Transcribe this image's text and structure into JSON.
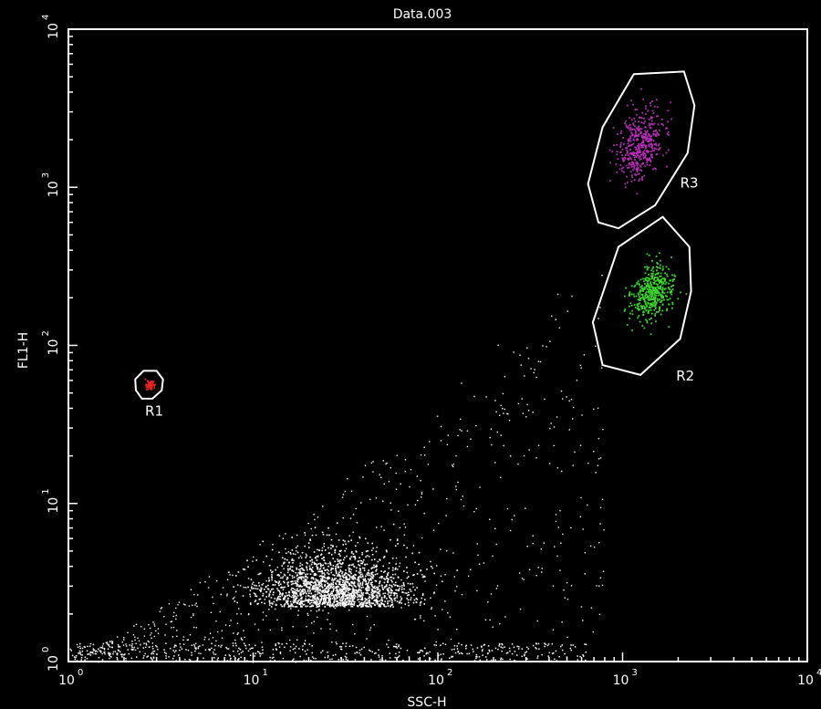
{
  "chart_data": {
    "type": "scatter",
    "title": "Data.003",
    "xlabel": "SSC-H",
    "ylabel": "FL1-H",
    "x_scale": "log",
    "y_scale": "log",
    "xlim": [
      1,
      10000
    ],
    "ylim": [
      1,
      10000
    ],
    "grid": false,
    "legend": "none",
    "x_ticks": [
      {
        "base": "10",
        "exp": "0",
        "value": 1
      },
      {
        "base": "10",
        "exp": "1",
        "value": 10
      },
      {
        "base": "10",
        "exp": "2",
        "value": 100
      },
      {
        "base": "10",
        "exp": "3",
        "value": 1000
      },
      {
        "base": "10",
        "exp": "4",
        "value": 10000
      }
    ],
    "y_ticks": [
      {
        "base": "10",
        "exp": "0",
        "value": 1
      },
      {
        "base": "10",
        "exp": "1",
        "value": 10
      },
      {
        "base": "10",
        "exp": "2",
        "value": 100
      },
      {
        "base": "10",
        "exp": "3",
        "value": 1000
      },
      {
        "base": "10",
        "exp": "4",
        "value": 10000
      }
    ],
    "colors": {
      "background": "#000000",
      "frame": "#ffffff",
      "events": "#ffffff",
      "R1": "#e8251e",
      "R2": "#3bd62c",
      "R3": "#b52fb6"
    },
    "regions": [
      {
        "name": "R1",
        "label": "R1",
        "color": "#e8251e",
        "polygon": [
          [
            2.55,
            69
          ],
          [
            3.0,
            69
          ],
          [
            3.25,
            61
          ],
          [
            3.2,
            52
          ],
          [
            2.85,
            46
          ],
          [
            2.5,
            46
          ],
          [
            2.32,
            52
          ],
          [
            2.3,
            61
          ]
        ],
        "label_at": [
          2.6,
          36
        ],
        "center": [
          2.75,
          57
        ],
        "spread": [
          1.06,
          1.07
        ]
      },
      {
        "name": "R2",
        "label": "R2",
        "color": "#3bd62c",
        "polygon": [
          [
            1650,
            650
          ],
          [
            2300,
            420
          ],
          [
            2350,
            220
          ],
          [
            2050,
            110
          ],
          [
            1250,
            65
          ],
          [
            780,
            75
          ],
          [
            690,
            140
          ],
          [
            950,
            420
          ]
        ],
        "label_at": [
          1950,
          60
        ],
        "center": [
          1450,
          220
        ],
        "spread": [
          1.28,
          1.45
        ]
      },
      {
        "name": "R3",
        "label": "R3",
        "color": "#b52fb6",
        "polygon": [
          [
            1150,
            5200
          ],
          [
            2150,
            5400
          ],
          [
            2450,
            3300
          ],
          [
            2250,
            1650
          ],
          [
            1500,
            770
          ],
          [
            950,
            550
          ],
          [
            740,
            600
          ],
          [
            650,
            1050
          ],
          [
            780,
            2400
          ]
        ],
        "label_at": [
          2050,
          1000
        ],
        "center": [
          1250,
          1900
        ],
        "spread": [
          1.32,
          1.6
        ]
      }
    ]
  }
}
